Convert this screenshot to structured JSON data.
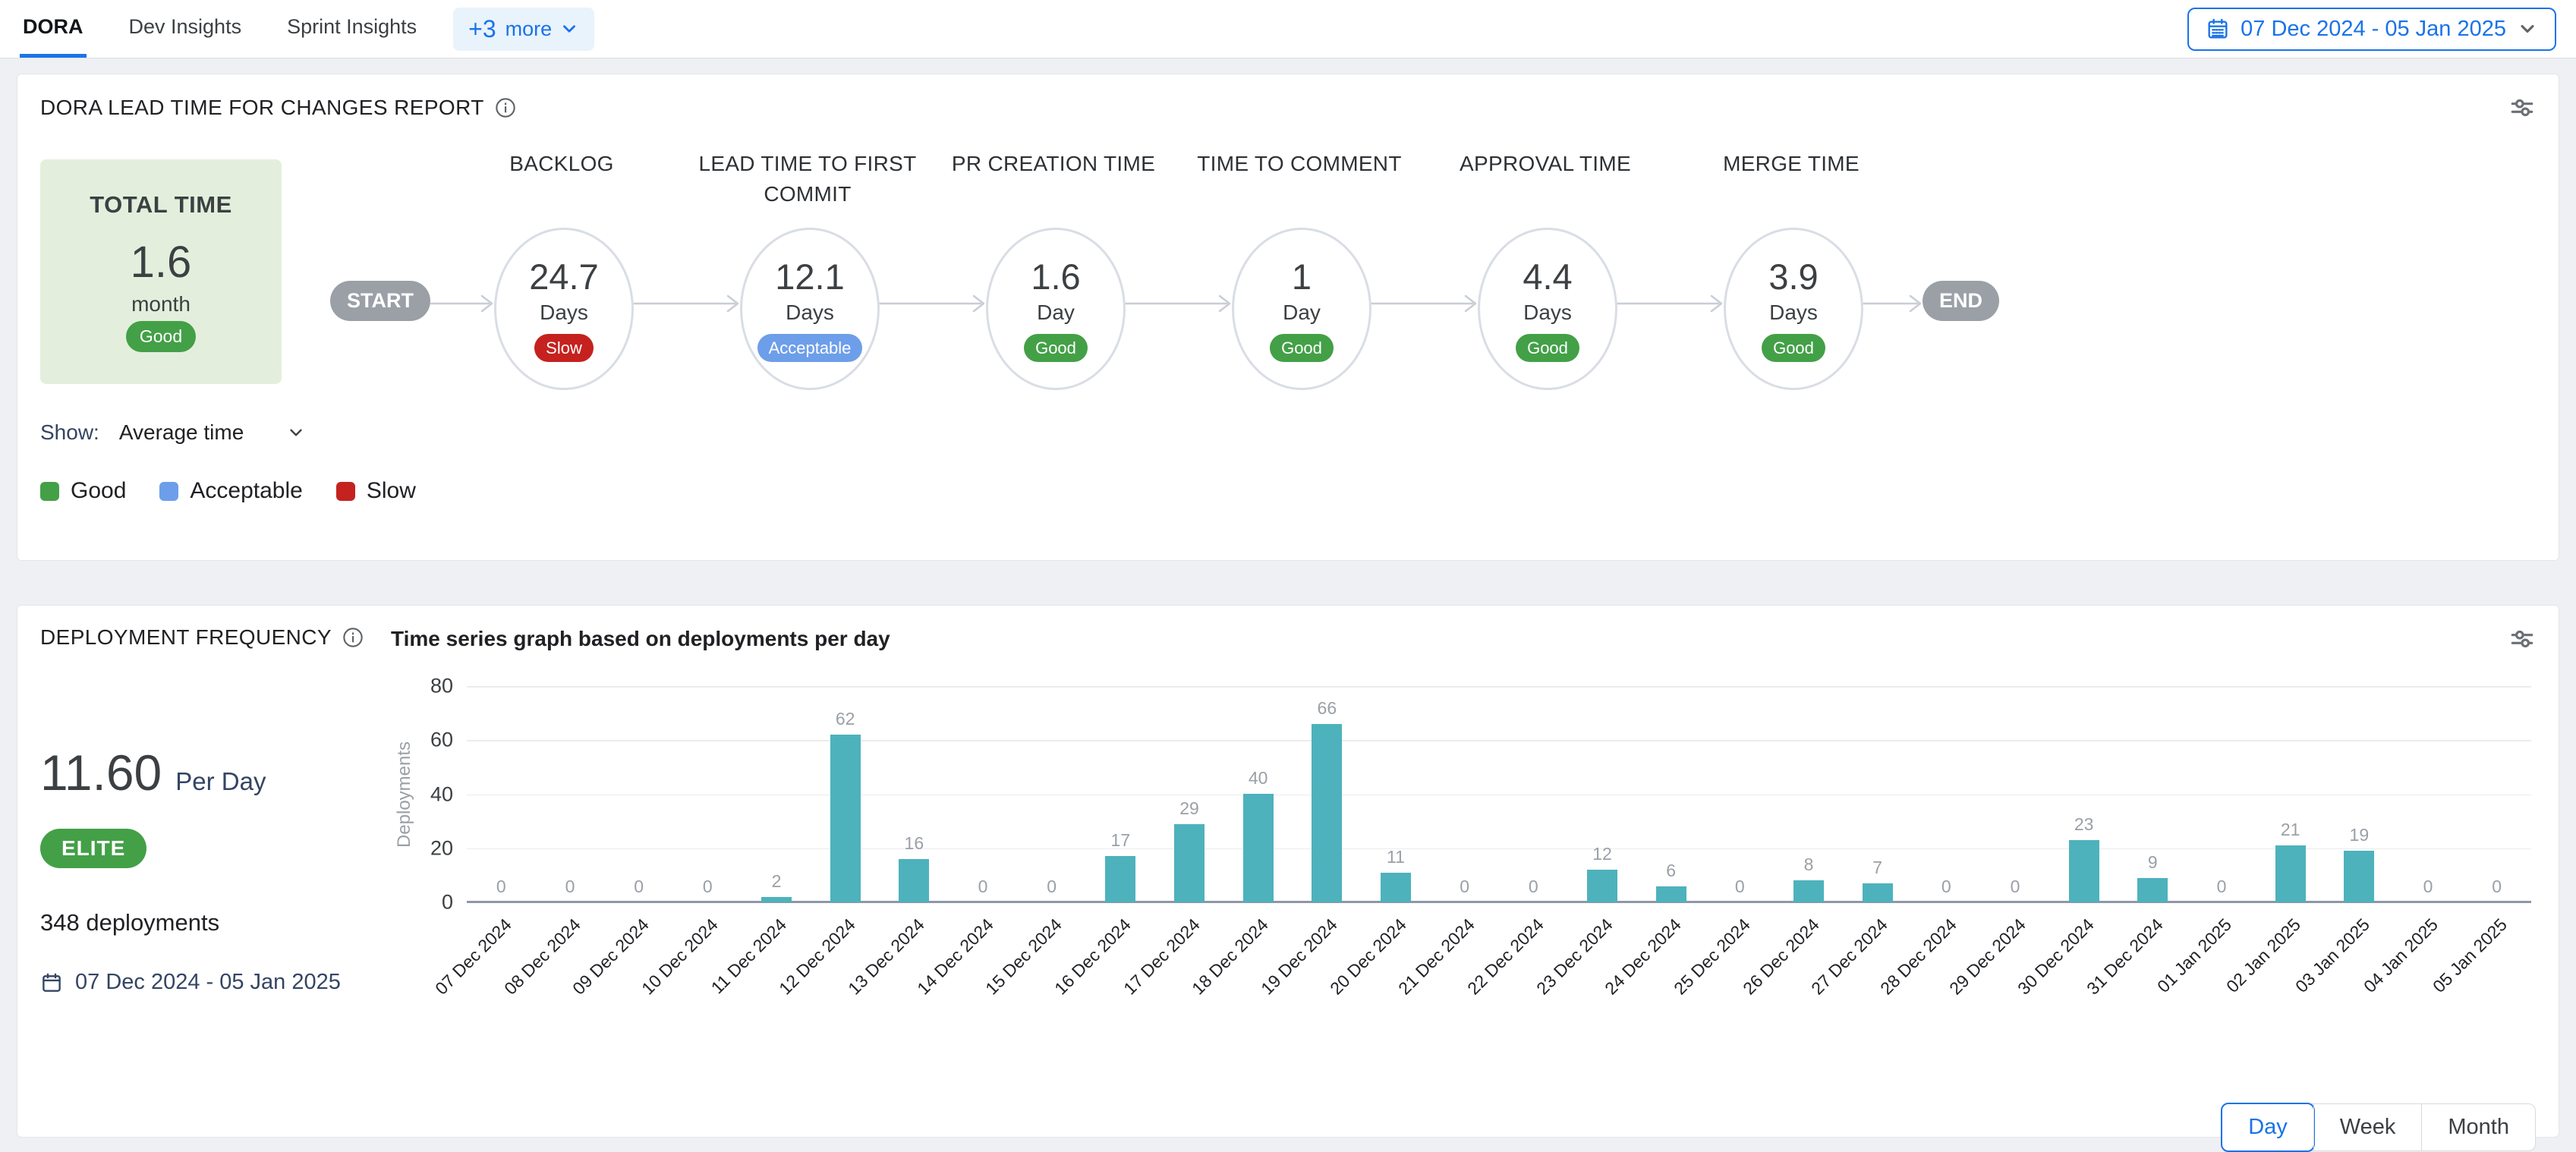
{
  "nav": {
    "tabs": [
      {
        "label": "DORA",
        "active": true
      },
      {
        "label": "Dev Insights",
        "active": false
      },
      {
        "label": "Sprint Insights",
        "active": false
      }
    ],
    "more_plus": "+3",
    "more_text": "more",
    "date_range": "07 Dec 2024 - 05 Jan 2025"
  },
  "status_colors": {
    "Good": "#43a047",
    "Acceptable": "#6d9eea",
    "Slow": "#c5221f"
  },
  "lead_time": {
    "title": "DORA LEAD TIME FOR CHANGES REPORT",
    "total": {
      "label": "TOTAL TIME",
      "value": "1.6",
      "unit": "month",
      "status": "Good"
    },
    "start_label": "START",
    "end_label": "END",
    "stages": [
      {
        "name": "BACKLOG",
        "value": "24.7",
        "unit": "Days",
        "status": "Slow"
      },
      {
        "name": "LEAD TIME TO FIRST COMMIT",
        "value": "12.1",
        "unit": "Days",
        "status": "Acceptable"
      },
      {
        "name": "PR CREATION TIME",
        "value": "1.6",
        "unit": "Day",
        "status": "Good"
      },
      {
        "name": "TIME TO COMMENT",
        "value": "1",
        "unit": "Day",
        "status": "Good"
      },
      {
        "name": "APPROVAL TIME",
        "value": "4.4",
        "unit": "Days",
        "status": "Good"
      },
      {
        "name": "MERGE TIME",
        "value": "3.9",
        "unit": "Days",
        "status": "Good"
      }
    ],
    "show_label": "Show:",
    "show_value": "Average time",
    "legend": [
      {
        "label": "Good",
        "color": "#43a047"
      },
      {
        "label": "Acceptable",
        "color": "#6d9eea"
      },
      {
        "label": "Slow",
        "color": "#c5221f"
      }
    ]
  },
  "deployment": {
    "title": "DEPLOYMENT FREQUENCY",
    "subtitle": "Time series graph based on deployments per day",
    "rate": "11.60",
    "rate_unit": "Per Day",
    "badge": "ELITE",
    "total": "348 deployments",
    "date_range": "07 Dec 2024 - 05 Jan 2025",
    "toggle": [
      "Day",
      "Week",
      "Month"
    ],
    "active_toggle": "Day"
  },
  "chart_data": {
    "type": "bar",
    "title": "Time series graph based on deployments per day",
    "xlabel": "",
    "ylabel": "Deployments",
    "ylim": [
      0,
      80
    ],
    "yticks": [
      0,
      20,
      40,
      60,
      80
    ],
    "grid": true,
    "bar_color": "#4db2bc",
    "categories": [
      "07 Dec 2024",
      "08 Dec 2024",
      "09 Dec 2024",
      "10 Dec 2024",
      "11 Dec 2024",
      "12 Dec 2024",
      "13 Dec 2024",
      "14 Dec 2024",
      "15 Dec 2024",
      "16 Dec 2024",
      "17 Dec 2024",
      "18 Dec 2024",
      "19 Dec 2024",
      "20 Dec 2024",
      "21 Dec 2024",
      "22 Dec 2024",
      "23 Dec 2024",
      "24 Dec 2024",
      "25 Dec 2024",
      "26 Dec 2024",
      "27 Dec 2024",
      "28 Dec 2024",
      "29 Dec 2024",
      "30 Dec 2024",
      "31 Dec 2024",
      "01 Jan 2025",
      "02 Jan 2025",
      "03 Jan 2025",
      "04 Jan 2025",
      "05 Jan 2025"
    ],
    "values": [
      0,
      0,
      0,
      0,
      2,
      62,
      16,
      0,
      0,
      17,
      29,
      40,
      66,
      11,
      0,
      0,
      12,
      6,
      0,
      8,
      7,
      0,
      0,
      23,
      9,
      0,
      21,
      19,
      0,
      0
    ]
  }
}
